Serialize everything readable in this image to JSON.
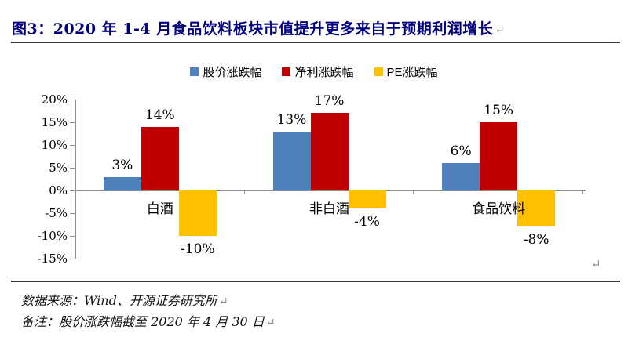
{
  "document": {
    "title": "图3：2020 年 1-4 月食品饮料板块市值提升更多来自于预期利润增长",
    "paragraph_mark": "↵",
    "source": "数据来源：Wind、开源证券研究所",
    "note": "备注：股价涨跌幅截至 2020 年 4 月 30 日"
  },
  "colors": {
    "title": "#000080",
    "rule": "#3a3a3a",
    "axis": "#8c8c8c",
    "text": "#111111",
    "pmark": "#8a8f97",
    "series_blue": "#4F81BD",
    "series_red": "#C00000",
    "series_yellow": "#FFC000"
  },
  "chart_data": {
    "type": "bar",
    "title": "图3：2020 年 1-4 月食品饮料板块市值提升更多来自于预期利润增长",
    "categories": [
      "白酒",
      "非白酒",
      "食品饮料"
    ],
    "series": [
      {
        "name": "股价涨跌幅",
        "color": "#4F81BD",
        "values": [
          3,
          13,
          6
        ]
      },
      {
        "name": "净利涨跌幅",
        "color": "#C00000",
        "values": [
          14,
          17,
          15
        ]
      },
      {
        "name": "PE涨跌幅",
        "color": "#FFC000",
        "values": [
          -10,
          -4,
          -8
        ]
      }
    ],
    "data_label_format": "{v}%",
    "yticks": [
      20,
      15,
      10,
      5,
      0,
      -5,
      -10,
      -15
    ],
    "ytick_labels": [
      "20%",
      "15%",
      "10%",
      "5%",
      "0%",
      "-5%",
      "-10%",
      "-15%"
    ],
    "ylim": [
      -15,
      20
    ],
    "grid": false,
    "legend_position": "top",
    "xlabel": "",
    "ylabel": ""
  }
}
